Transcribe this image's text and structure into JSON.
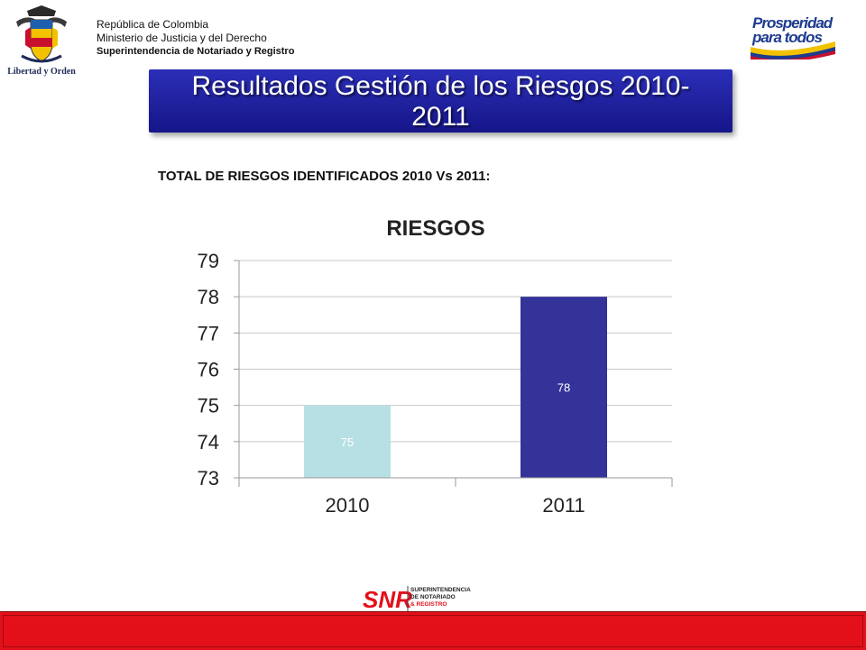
{
  "header": {
    "line1": "República de Colombia",
    "line2": "Ministerio de Justicia y del Derecho",
    "line3": "Superintendencia  de Notariado  y Registro",
    "crest_motto": "Libertad y Orden",
    "crest_icon": "colombia-coat-of-arms-icon",
    "right_logo_line1": "Prosperidad",
    "right_logo_line2": "para todos",
    "right_logo_icon": "prosperidad-para-todos-logo"
  },
  "title": {
    "line1": "Resultados Gestión de los Riesgos 2010-",
    "line2": "2011"
  },
  "subtitle": "TOTAL DE RIESGOS IDENTIFICADOS 2010 Vs 2011:",
  "chart_data": {
    "type": "bar",
    "title": "RIESGOS",
    "categories": [
      "2010",
      "2011"
    ],
    "values": [
      75,
      78
    ],
    "data_labels": [
      "75",
      "78"
    ],
    "bar_colors": [
      "#b7e0e4",
      "#333399"
    ],
    "label_colors": [
      "#ffffff",
      "#ffffff"
    ],
    "ylim": [
      73,
      79
    ],
    "yticks": [
      73,
      74,
      75,
      76,
      77,
      78,
      79
    ],
    "xlabel": "",
    "ylabel": "",
    "grid": true,
    "legend": "none"
  },
  "footer": {
    "snr_text": "SNR",
    "snr_line1": "SUPERINTENDENCIA",
    "snr_line2": "DE NOTARIADO",
    "snr_line3": "& REGISTRO",
    "snr_icon": "snr-logo",
    "bar_color": "#e3101a"
  }
}
